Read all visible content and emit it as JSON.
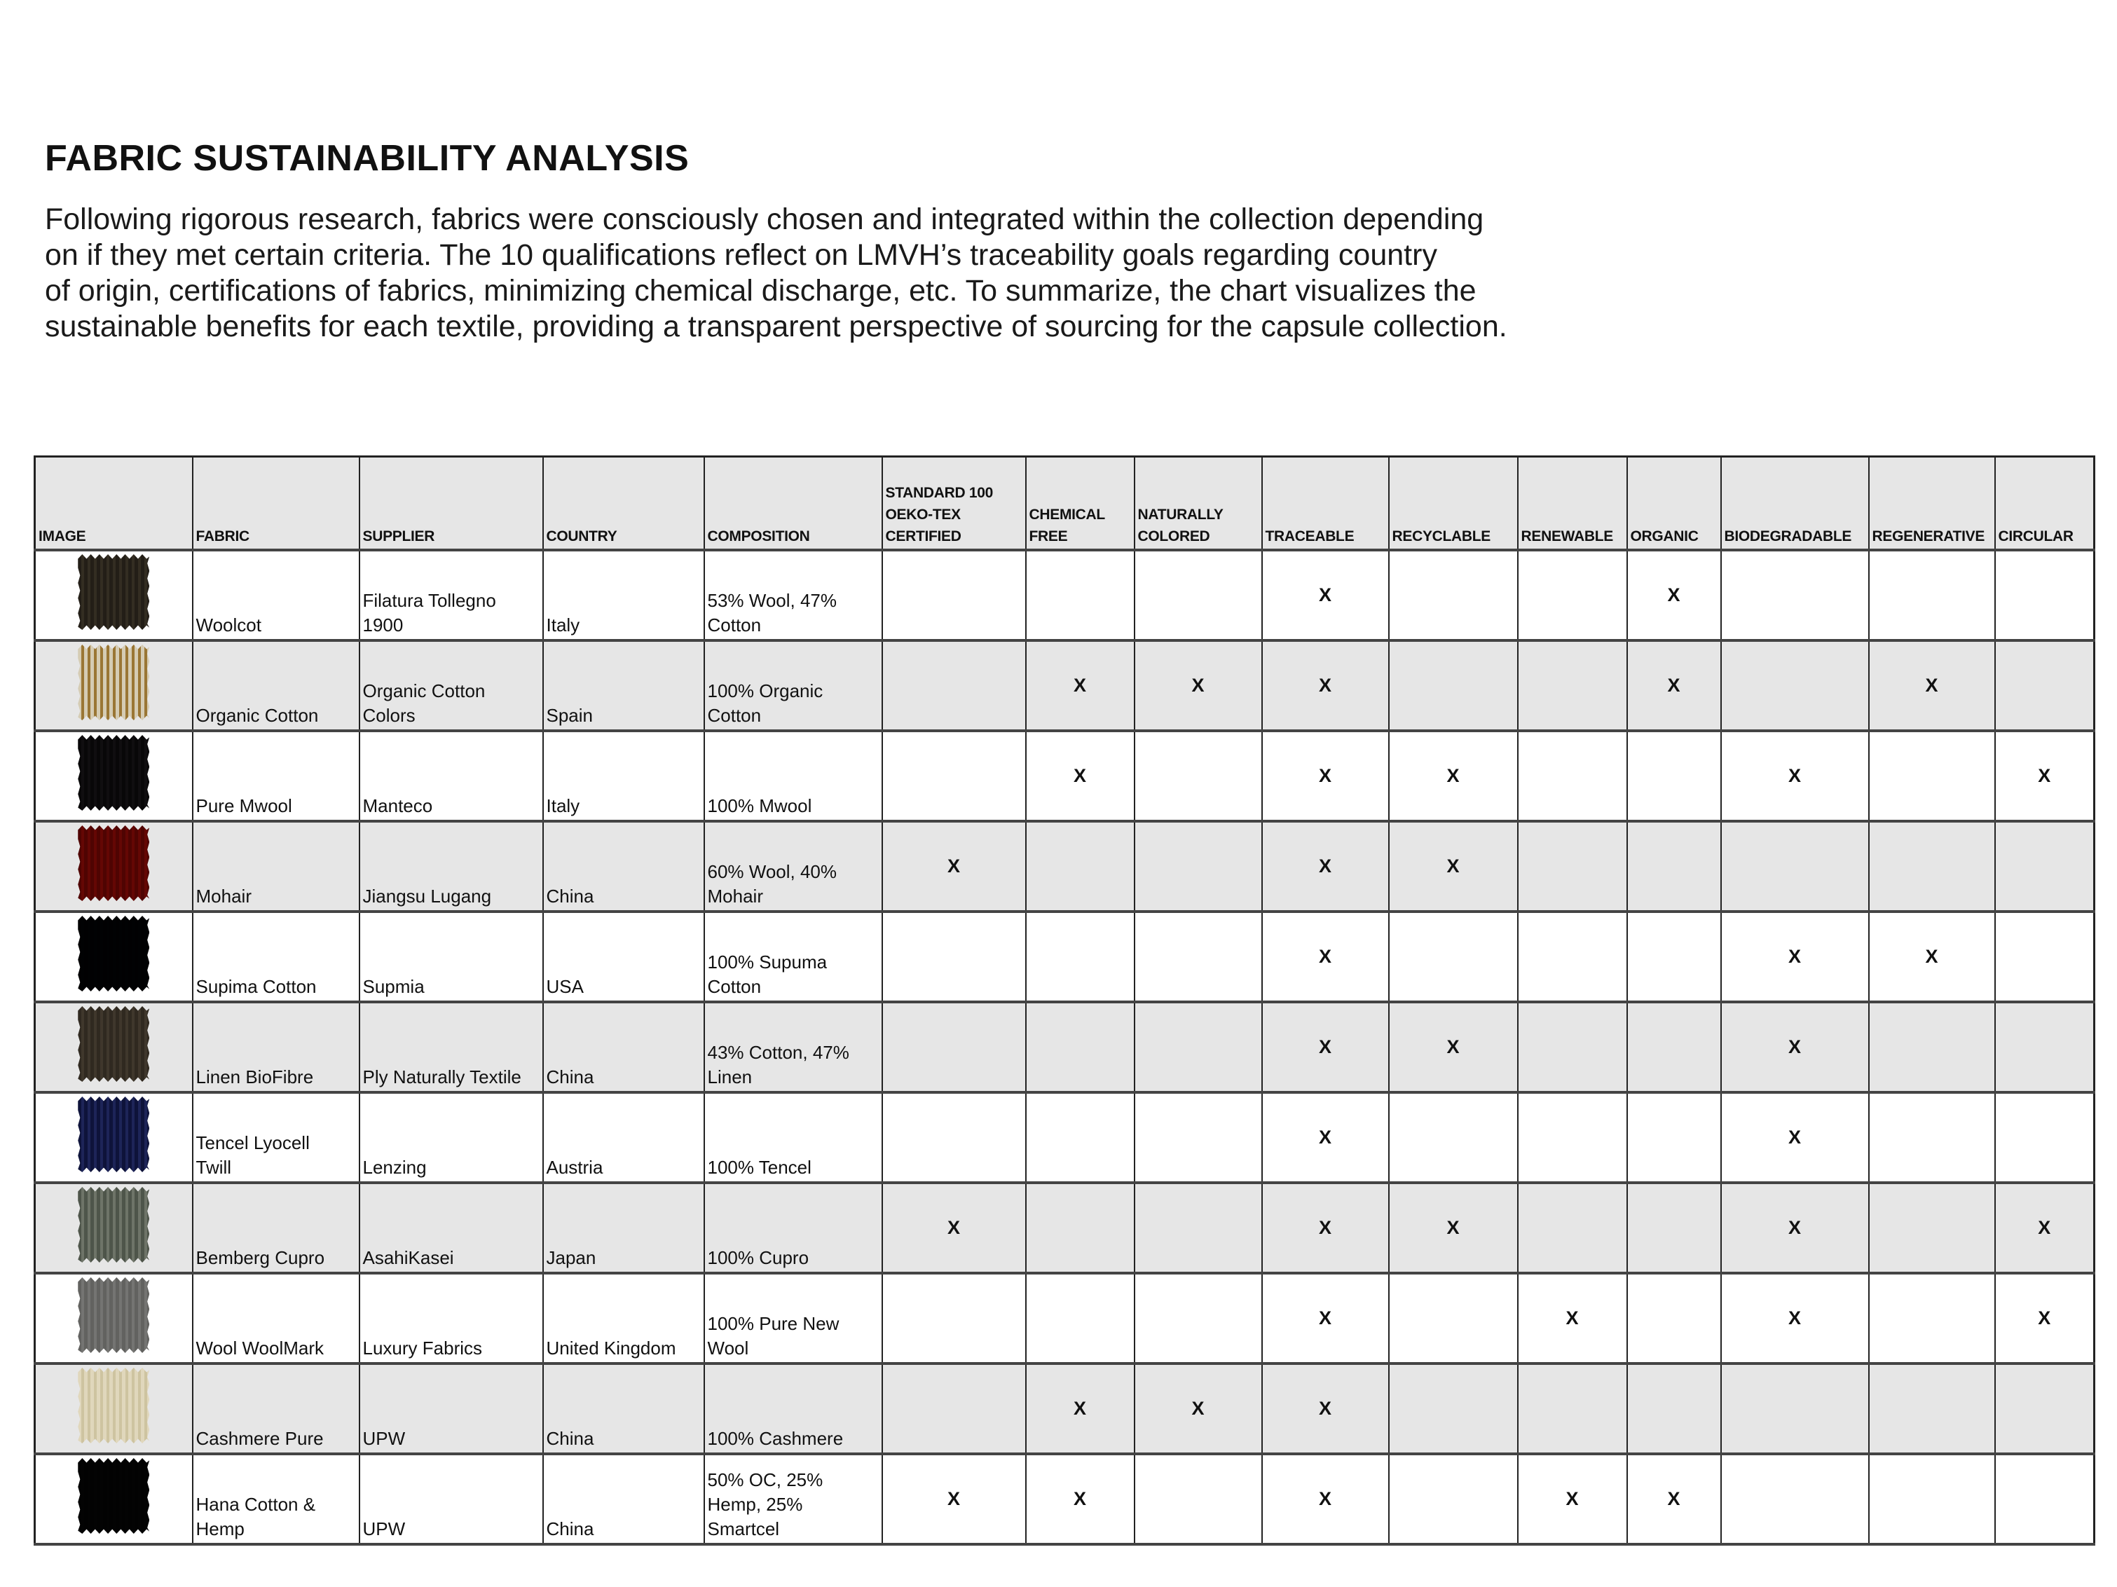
{
  "title": "FABRIC SUSTAINABILITY ANALYSIS",
  "intro": "Following rigorous research, fabrics were consciously chosen and integrated within the collection depending\non if they met certain criteria.  The 10 qualifications reflect on LMVH’s traceability goals regarding country\nof origin, certifications of fabrics, minimizing chemical discharge, etc. To summarize, the chart visualizes the\nsustainable benefits for each textile, providing a transparent perspective of sourcing for the capsule collection.",
  "table": {
    "headers": [
      "IMAGE",
      "FABRIC",
      "SUPPLIER",
      "COUNTRY",
      "COMPOSITION",
      "STANDARD 100\nOEKO-TEX\nCERTIFIED",
      "CHEMICAL\nFREE",
      "NATURALLY\nCOLORED",
      "TRACEABLE",
      "RECYCLABLE",
      "RENEWABLE",
      "ORGANIC",
      "BIODEGRADABLE",
      "REGENERATIVE",
      "CIRCULAR"
    ],
    "mark": "X",
    "rows": [
      {
        "fabric": "Woolcot",
        "supplier": "Filatura Tollegno\n1900",
        "country": "Italy",
        "composition": "53% Wool, 47%\nCotton",
        "swatch": [
          "#5f584c",
          "#8a8273"
        ],
        "marks": [
          3,
          6
        ]
      },
      {
        "fabric": "Organic Cotton",
        "supplier": "Organic Cotton\nColors",
        "country": "Spain",
        "composition": "100% Organic\nCotton",
        "swatch": [
          "#e9e4d6",
          "#a8843e"
        ],
        "marks": [
          1,
          2,
          3,
          6,
          8
        ]
      },
      {
        "fabric": "Pure Mwool",
        "supplier": "Manteco",
        "country": "Italy",
        "composition": "100% Mwool",
        "swatch": [
          "#2e2a2e",
          "#5a5458"
        ],
        "marks": [
          1,
          3,
          4,
          7,
          9
        ]
      },
      {
        "fabric": "Mohair",
        "supplier": "Jiangsu Lugang",
        "country": "China",
        "composition": "60% Wool, 40%\nMohair",
        "swatch": [
          "#8e1f17",
          "#b33a2a"
        ],
        "marks": [
          0,
          3,
          4
        ]
      },
      {
        "fabric": "Supima Cotton",
        "supplier": "Supmia",
        "country": "USA",
        "composition": "100% Supuma\nCotton",
        "swatch": [
          "#0c0e14",
          "#1d2028"
        ],
        "marks": [
          3,
          7,
          8
        ]
      },
      {
        "fabric": "Linen BioFibre",
        "supplier": "Ply Naturally Textile",
        "country": "China",
        "composition": "43% Cotton, 47%\nLinen",
        "swatch": [
          "#6e665a",
          "#928a7c"
        ],
        "marks": [
          3,
          4,
          7
        ]
      },
      {
        "fabric": "Tencel Lyocell\nTwill",
        "supplier": "Lenzing",
        "country": "Austria",
        "composition": "100% Tencel",
        "swatch": [
          "#3c457a",
          "#7c86b8"
        ],
        "marks": [
          3,
          7
        ]
      },
      {
        "fabric": "Bemberg Cupro",
        "supplier": "AsahiKasei",
        "country": "Japan",
        "composition": "100% Cupro",
        "swatch": [
          "#8d9389",
          "#c6cac2"
        ],
        "marks": [
          0,
          3,
          4,
          7,
          9
        ]
      },
      {
        "fabric": "Wool WoolMark",
        "supplier": "Luxury Fabrics",
        "country": "United Kingdom",
        "composition": "100% Pure New\nWool",
        "swatch": [
          "#9e9e9c",
          "#bcbcba"
        ],
        "marks": [
          3,
          5,
          7,
          9
        ]
      },
      {
        "fabric": "Cashmere Pure",
        "supplier": "UPW",
        "country": "China",
        "composition": "100% Cashmere",
        "swatch": [
          "#efeadb",
          "#dcd5bb"
        ],
        "marks": [
          1,
          2,
          3
        ]
      },
      {
        "fabric": "Hana Cotton &\nHemp",
        "supplier": "UPW",
        "country": "China",
        "composition": "50% OC, 25%\nHemp, 25%\nSmartcel",
        "swatch": [
          "#141414",
          "#2a2a2a"
        ],
        "marks": [
          0,
          1,
          3,
          5,
          6
        ]
      }
    ]
  }
}
